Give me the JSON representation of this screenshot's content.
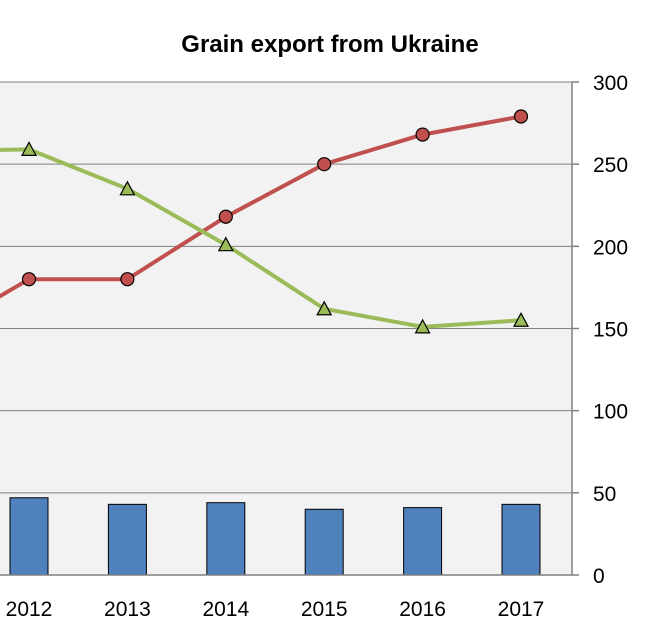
{
  "chart_data": {
    "type": "bar+line",
    "title": "Grain export from Ukraine",
    "categories": [
      "2012",
      "2013",
      "2014",
      "2015",
      "2016",
      "2017"
    ],
    "y_right": {
      "min": 0,
      "max": 300,
      "ticks": [
        0,
        50,
        100,
        150,
        200,
        250,
        300
      ]
    },
    "grid": true,
    "series": [
      {
        "kind": "bar",
        "color": "#4f81bd",
        "values": [
          47,
          43,
          44,
          40,
          41,
          43
        ]
      },
      {
        "kind": "line",
        "marker": "circle",
        "color": "#c0504d",
        "values": [
          180,
          180,
          218,
          250,
          268,
          279
        ],
        "offchart_left_value": 145
      },
      {
        "kind": "line",
        "marker": "triangle",
        "color": "#9bbb59",
        "values": [
          259,
          235,
          201,
          162,
          151,
          155
        ],
        "offchart_left_value": 258
      }
    ]
  }
}
